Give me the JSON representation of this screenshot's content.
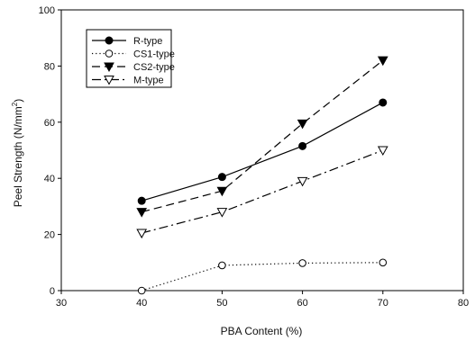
{
  "chart_data": {
    "type": "line",
    "title": "",
    "xlabel": "PBA Content (%)",
    "ylabel_main": "Peel Strength (N/mm",
    "ylabel_sup": "2",
    "ylabel_close": ")",
    "xlim": [
      30,
      80
    ],
    "ylim": [
      0,
      100
    ],
    "xticks": [
      "30",
      "40",
      "50",
      "60",
      "70",
      "80"
    ],
    "yticks": [
      "0",
      "20",
      "40",
      "60",
      "80",
      "100"
    ],
    "grid": false,
    "legend_position": "top-left",
    "series": [
      {
        "name": "R-type",
        "marker": "circle-filled",
        "dash": "solid",
        "x": [
          40,
          50,
          60,
          70
        ],
        "values": [
          32,
          40.5,
          51.5,
          67
        ]
      },
      {
        "name": "CS1-type",
        "marker": "circle-open",
        "dash": "dotted",
        "x": [
          40,
          50,
          60,
          70
        ],
        "values": [
          0,
          9,
          9.8,
          10
        ]
      },
      {
        "name": "CS2-type",
        "marker": "triangle-down-filled",
        "dash": "dashed",
        "x": [
          40,
          50,
          60,
          70
        ],
        "values": [
          28,
          35.5,
          59.5,
          82
        ]
      },
      {
        "name": "M-type",
        "marker": "triangle-down-open",
        "dash": "dash-dot",
        "x": [
          40,
          50,
          60,
          70
        ],
        "values": [
          20.5,
          28,
          39,
          50
        ]
      }
    ]
  }
}
